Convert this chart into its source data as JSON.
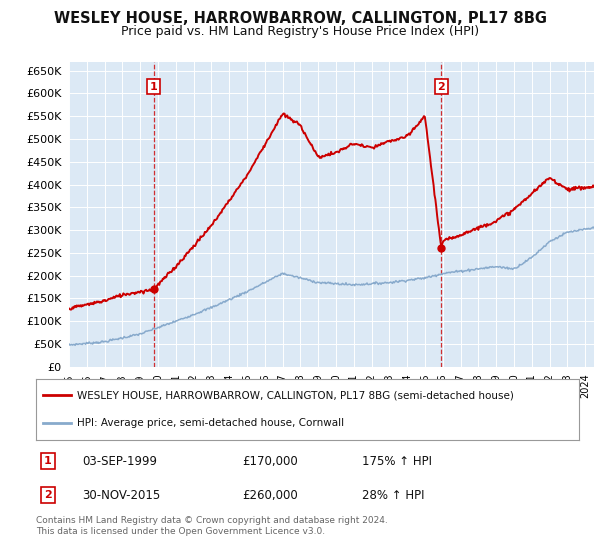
{
  "title": "WESLEY HOUSE, HARROWBARROW, CALLINGTON, PL17 8BG",
  "subtitle": "Price paid vs. HM Land Registry's House Price Index (HPI)",
  "bg_color": "#dce9f5",
  "ylim": [
    0,
    670000
  ],
  "yticks": [
    0,
    50000,
    100000,
    150000,
    200000,
    250000,
    300000,
    350000,
    400000,
    450000,
    500000,
    550000,
    600000,
    650000
  ],
  "xlim_start": 1995.0,
  "xlim_end": 2024.5,
  "legend_entry1": "WESLEY HOUSE, HARROWBARROW, CALLINGTON, PL17 8BG (semi-detached house)",
  "legend_entry2": "HPI: Average price, semi-detached house, Cornwall",
  "sale1_date": 1999.75,
  "sale1_price": 170000,
  "sale1_label": "1",
  "sale2_date": 2015.92,
  "sale2_price": 260000,
  "sale2_label": "2",
  "footer": "Contains HM Land Registry data © Crown copyright and database right 2024.\nThis data is licensed under the Open Government Licence v3.0.",
  "red_color": "#cc0000",
  "blue_color": "#88aacc",
  "hpi_anchors_x": [
    1995,
    1997,
    1999,
    2001,
    2003,
    2005,
    2007,
    2009,
    2011,
    2013,
    2015,
    2016,
    2017,
    2018,
    2019,
    2020,
    2021,
    2022,
    2023,
    2024.5
  ],
  "hpi_anchors_y": [
    48000,
    55000,
    72000,
    100000,
    130000,
    165000,
    205000,
    185000,
    180000,
    185000,
    195000,
    205000,
    210000,
    215000,
    220000,
    215000,
    240000,
    275000,
    295000,
    305000
  ],
  "red_anchors_x": [
    1995,
    1997,
    1998,
    1999.75,
    2001,
    2003,
    2005,
    2007,
    2008,
    2009,
    2010,
    2011,
    2012,
    2013,
    2014,
    2015,
    2015.92,
    2016,
    2017,
    2018,
    2019,
    2020,
    2021,
    2022,
    2023,
    2024.5
  ],
  "red_anchors_y": [
    128000,
    145000,
    158000,
    170000,
    220000,
    310000,
    420000,
    555000,
    530000,
    460000,
    470000,
    490000,
    480000,
    495000,
    505000,
    550000,
    260000,
    275000,
    290000,
    305000,
    320000,
    345000,
    380000,
    415000,
    390000,
    395000
  ]
}
